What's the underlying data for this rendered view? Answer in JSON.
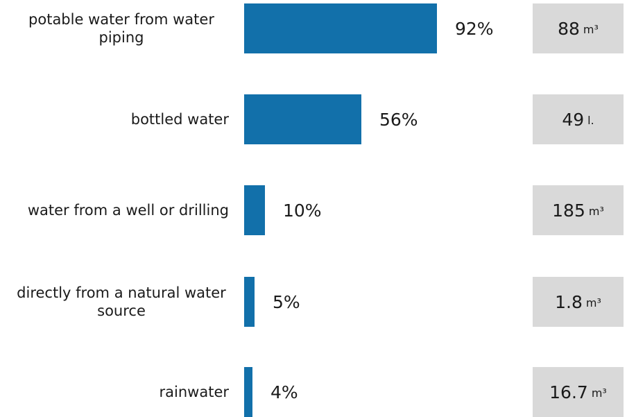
{
  "chart_data": {
    "type": "bar",
    "orientation": "horizontal",
    "categories": [
      "potable water from water piping",
      "bottled water",
      "water from a well or drilling",
      "directly from a natural water source",
      "rainwater"
    ],
    "values": [
      92,
      56,
      10,
      5,
      4
    ],
    "value_suffix": "%",
    "xlim": [
      0,
      100
    ],
    "bar_color": "#1270aa",
    "quantities": [
      {
        "value": "88",
        "unit": "m³"
      },
      {
        "value": "49",
        "unit": "l."
      },
      {
        "value": "185",
        "unit": "m³"
      },
      {
        "value": "1.8",
        "unit": "m³"
      },
      {
        "value": "16.7",
        "unit": "m³"
      }
    ],
    "quantity_box_color": "#d9d9d9"
  }
}
